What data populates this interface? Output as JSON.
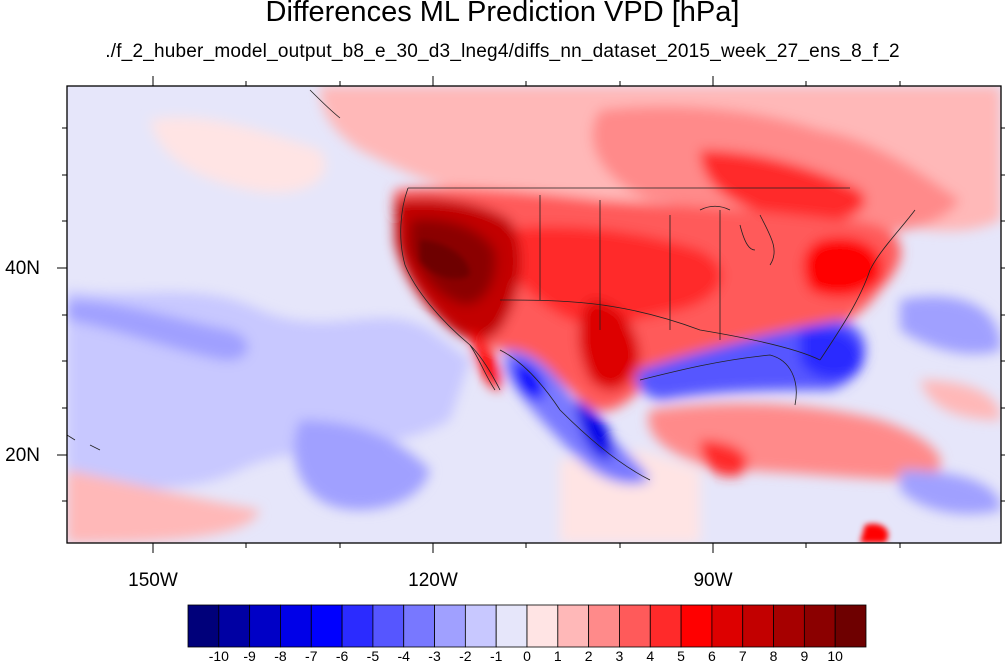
{
  "title": "Differences ML Prediction VPD [hPa]",
  "subtitle": "./f_2_huber_model_output_b8_e_30_d3_lneg4/diffs_nn_dataset_2015_week_27_ens_8_f_2",
  "map": {
    "lon_ticks": [
      "150W",
      "120W",
      "90W"
    ],
    "lat_ticks": [
      "40N",
      "20N"
    ],
    "colors": {
      "frame": "#000000",
      "coast": "#222222"
    }
  },
  "colorbar": {
    "labels": [
      "-10",
      "-9",
      "-8",
      "-7",
      "-6",
      "-5",
      "-4",
      "-3",
      "-2",
      "-1",
      "0",
      "1",
      "2",
      "3",
      "4",
      "5",
      "6",
      "7",
      "8",
      "9",
      "10"
    ],
    "colors": [
      "#00007a",
      "#0000a3",
      "#0000c6",
      "#0000e8",
      "#0000ff",
      "#2b2bff",
      "#5656ff",
      "#7878ff",
      "#a0a0ff",
      "#c8c8ff",
      "#e6e6fa",
      "#ffe4e4",
      "#ffb8b8",
      "#ff8a8a",
      "#ff5a5a",
      "#ff2a2a",
      "#ff0000",
      "#dd0000",
      "#c20000",
      "#a60000",
      "#8b0000",
      "#6e0000"
    ]
  }
}
